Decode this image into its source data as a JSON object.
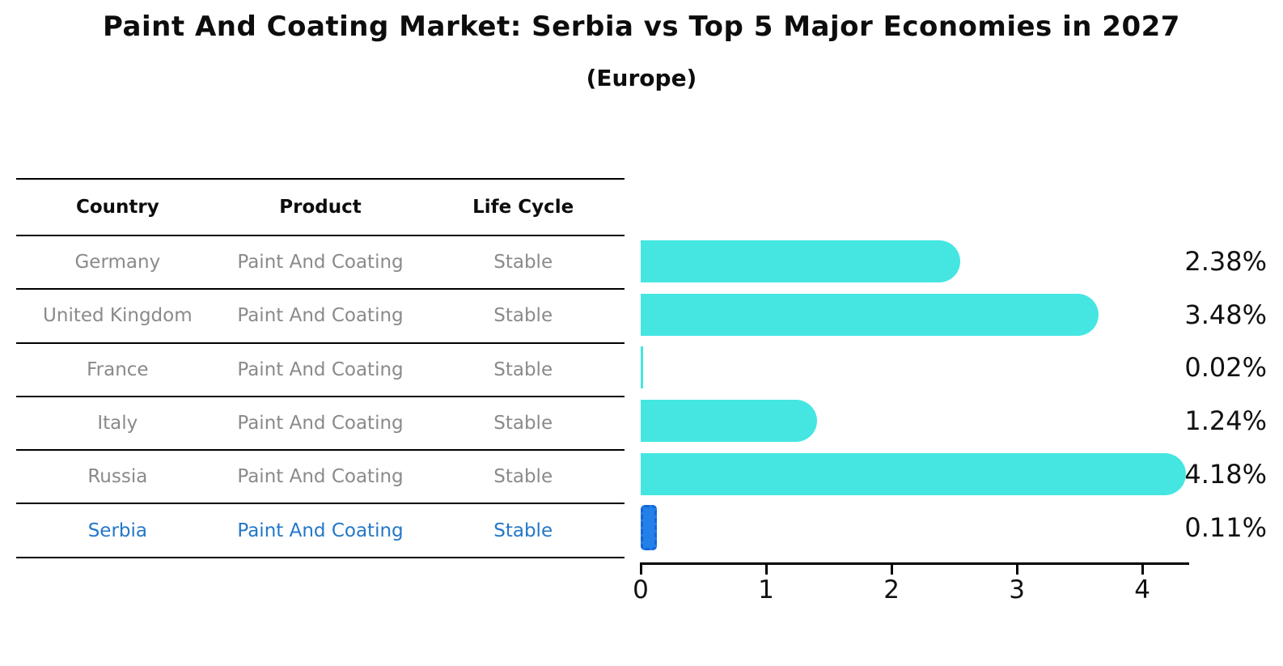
{
  "title": "Paint And Coating Market: Serbia vs Top 5 Major Economies in 2027",
  "subtitle": "(Europe)",
  "table": {
    "headers": [
      "Country",
      "Product",
      "Life Cycle"
    ],
    "rows": [
      {
        "country": "Germany",
        "product": "Paint And Coating",
        "life_cycle": "Stable"
      },
      {
        "country": "United Kingdom",
        "product": "Paint And Coating",
        "life_cycle": "Stable"
      },
      {
        "country": "France",
        "product": "Paint And Coating",
        "life_cycle": "Stable"
      },
      {
        "country": "Italy",
        "product": "Paint And Coating",
        "life_cycle": "Stable"
      },
      {
        "country": "Russia",
        "product": "Paint And Coating",
        "life_cycle": "Stable"
      },
      {
        "country": "Serbia",
        "product": "Paint And Coating",
        "life_cycle": "Stable"
      }
    ],
    "highlighted_row": "Serbia"
  },
  "chart_data": {
    "type": "bar",
    "orientation": "horizontal",
    "title": "Paint And Coating Market: Serbia vs Top 5 Major Economies in 2027",
    "subtitle": "(Europe)",
    "categories": [
      "Germany",
      "United Kingdom",
      "France",
      "Italy",
      "Russia",
      "Serbia"
    ],
    "values": [
      2.38,
      3.48,
      0.02,
      1.24,
      4.18,
      0.11
    ],
    "value_labels": [
      "2.38%",
      "3.48%",
      "0.02%",
      "1.24%",
      "4.18%",
      "0.11%"
    ],
    "xlabel": "",
    "ylabel": "",
    "xlim": [
      0,
      4.36
    ],
    "xticks": [
      0,
      1,
      2,
      3,
      4
    ],
    "grid": false,
    "legend": "none",
    "highlight_index": 5,
    "bar_color": "#45e6e2",
    "highlight_bar_color": "#2280e8",
    "highlight_bar_edge_style": "dashed"
  },
  "colors": {
    "bar_cyan": "#45e6e2",
    "serbia_blue": "#2280e8",
    "serbia_text": "#2377c8",
    "table_text_gray": "#8a8a8a",
    "text_black": "#0d0d0d"
  }
}
